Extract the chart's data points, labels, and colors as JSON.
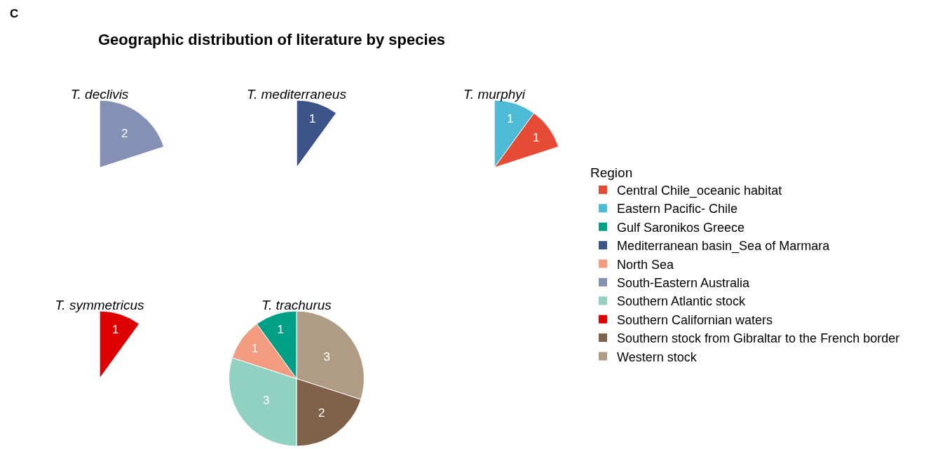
{
  "chart_data": [
    {
      "type": "pie",
      "title": "T. declivis",
      "annotations": [
        "C",
        "Geographic distribution of literature by species"
      ],
      "legend_title": "Region",
      "legend": "right",
      "data_labels": true,
      "categories": [
        "South-Eastern Australia"
      ],
      "values": [
        2
      ],
      "colors": [
        "#8491b4"
      ]
    },
    {
      "type": "pie",
      "title": "T. mediterraneus",
      "legend": "right",
      "data_labels": true,
      "categories": [
        "Mediterranean basin_Sea of Marmara"
      ],
      "values": [
        1
      ],
      "colors": [
        "#3c5488"
      ]
    },
    {
      "type": "pie",
      "title": "T. murphyi",
      "legend": "right",
      "data_labels": true,
      "categories": [
        "Eastern Pacific- Chile",
        "Central Chile_oceanic habitat"
      ],
      "values": [
        1,
        1
      ],
      "colors": [
        "#4dbbd5",
        "#e64b35"
      ]
    },
    {
      "type": "pie",
      "title": "T. symmetricus",
      "legend": "right",
      "data_labels": true,
      "categories": [
        "Southern Californian waters"
      ],
      "values": [
        1
      ],
      "colors": [
        "#dc0000"
      ]
    },
    {
      "type": "pie",
      "title": "T. trachurus",
      "legend": "right",
      "data_labels": true,
      "categories": [
        "Western stock",
        "Southern stock from Gibraltar to the French border",
        "Southern Atlantic stock",
        "North Sea",
        "Gulf Saronikos Greece"
      ],
      "values": [
        3,
        2,
        3,
        1,
        1
      ],
      "colors": [
        "#b09c85",
        "#7e6148",
        "#91d1c2",
        "#f39b7f",
        "#00a087"
      ]
    }
  ]
}
